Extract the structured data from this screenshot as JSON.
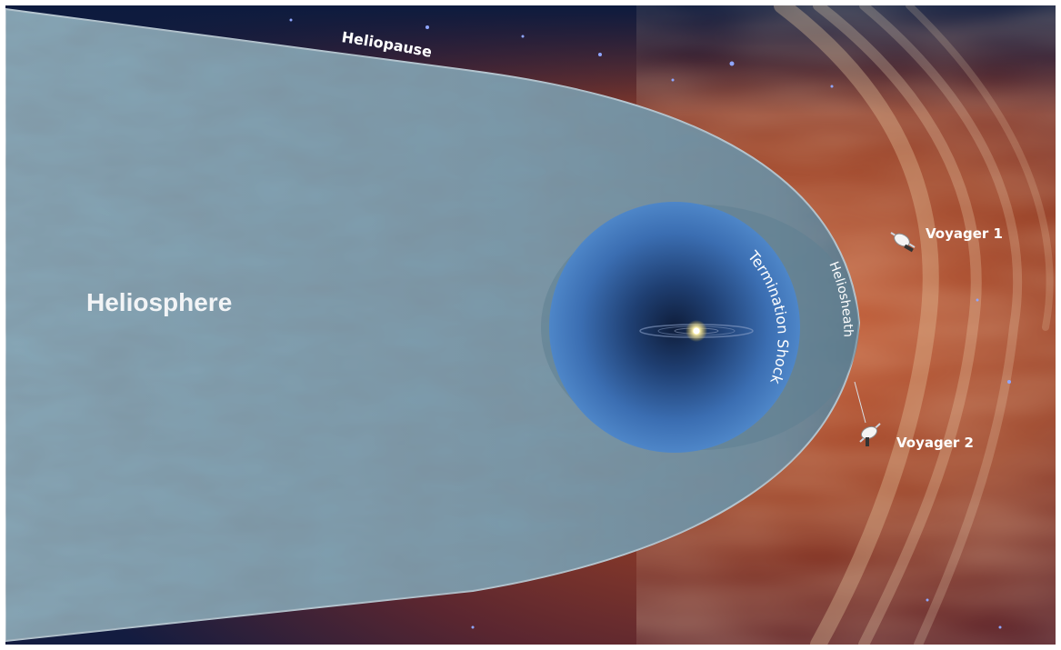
{
  "labels": {
    "heliosphere": "Heliosphere",
    "heliopause": "Heliopause",
    "termination_shock": "Termination Shock",
    "heliosheath": "Heliosheath",
    "voyager1": "Voyager 1",
    "voyager2": "Voyager 2"
  },
  "colors": {
    "heliosphere_fill": "#7e9fb0",
    "inner_bubble": "#3f74b8",
    "interstellar_medium": "#8a3a22",
    "space_background": "#0b1a3c",
    "label_text": "#ffffff"
  },
  "icons": {
    "sun": "sun-icon",
    "spacecraft": "spacecraft-icon"
  }
}
